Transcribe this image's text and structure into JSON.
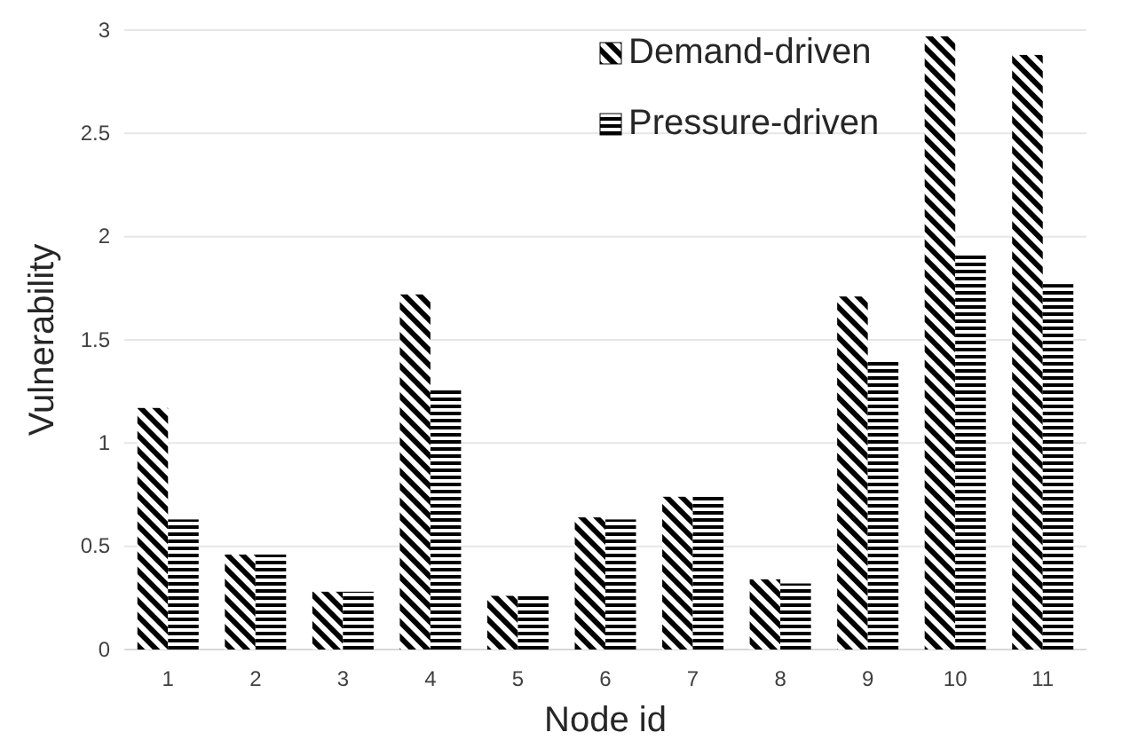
{
  "chart_data": {
    "type": "bar",
    "xlabel": "Node id",
    "ylabel": "Vulnerability",
    "categories": [
      "1",
      "2",
      "3",
      "4",
      "5",
      "6",
      "7",
      "8",
      "9",
      "10",
      "11"
    ],
    "series": [
      {
        "name": "Demand-driven",
        "color": "#000000",
        "values": [
          1.17,
          0.46,
          0.28,
          1.72,
          0.26,
          0.64,
          0.74,
          0.34,
          1.71,
          2.97,
          2.88
        ]
      },
      {
        "name": "Pressure-driven",
        "color": "#000000",
        "values": [
          0.63,
          0.46,
          0.28,
          1.26,
          0.26,
          0.63,
          0.74,
          0.32,
          1.4,
          1.91,
          1.77
        ]
      }
    ],
    "ylim": [
      0,
      3
    ],
    "yticks": [
      0,
      0.5,
      1,
      1.5,
      2,
      2.5,
      3
    ],
    "grid": "y",
    "legend": "top right"
  }
}
